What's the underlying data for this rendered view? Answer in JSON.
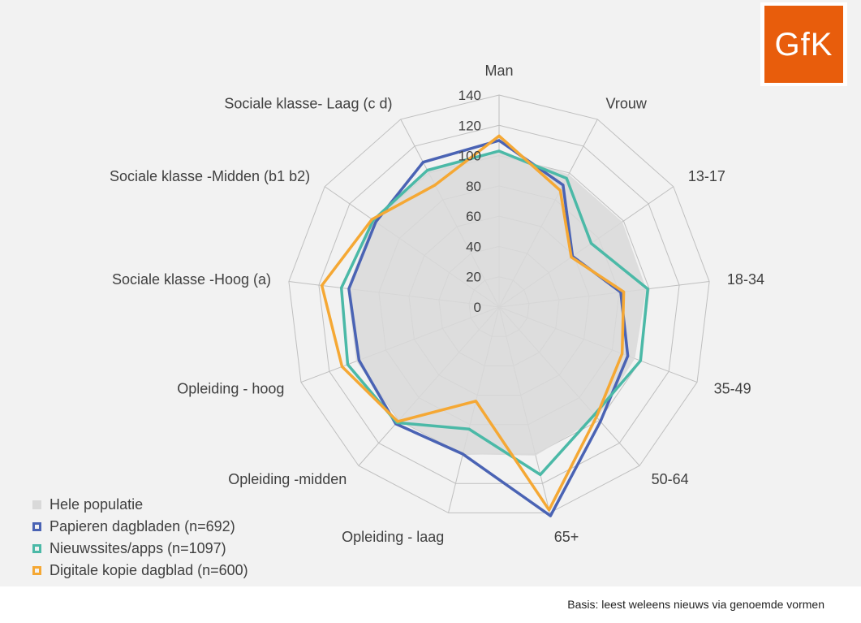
{
  "chart_data": {
    "type": "radar",
    "axes": [
      "Man",
      "Vrouw",
      "13-17",
      "18-34",
      "35-49",
      "50-64",
      "65+",
      "Opleiding - laag",
      "Opleiding -midden",
      "Opleiding - hoog",
      "Sociale klasse -Hoog (a)",
      "Sociale klasse -Midden (b1 b2)",
      "Sociale klasse- Laag (c d)"
    ],
    "rlim": [
      0,
      140
    ],
    "ticks": [
      0,
      20,
      40,
      60,
      80,
      100,
      120,
      140
    ],
    "series": [
      {
        "name": "Hele populatie",
        "style": "area",
        "color": "#d9d9d9",
        "values": [
          102,
          99,
          99,
          98,
          96,
          98,
          101,
          100,
          100,
          101,
          101,
          101,
          101
        ]
      },
      {
        "name": "Papieren dagbladen (n=692)",
        "style": "line",
        "color": "#4a63b4",
        "values": [
          110,
          91,
          59,
          81,
          91,
          101,
          142,
          100,
          103,
          99,
          100,
          99,
          108
        ]
      },
      {
        "name": "Nieuwssites/apps (n=1097)",
        "style": "line",
        "color": "#4bb9a7",
        "values": [
          103,
          96,
          74,
          99,
          100,
          95,
          114,
          83,
          102,
          107,
          105,
          101,
          102
        ]
      },
      {
        "name": "Digitale kopie dagblad (n=600)",
        "style": "line",
        "color": "#f5a834",
        "values": [
          113,
          87,
          58,
          83,
          87,
          97,
          138,
          64,
          101,
          111,
          118,
          102,
          91
        ]
      }
    ],
    "legend_position": "bottom-left"
  },
  "logo": {
    "text": "GfK",
    "color": "#e85d0c"
  },
  "footnote": "Basis: leest weleens nieuws via genoemde vormen"
}
